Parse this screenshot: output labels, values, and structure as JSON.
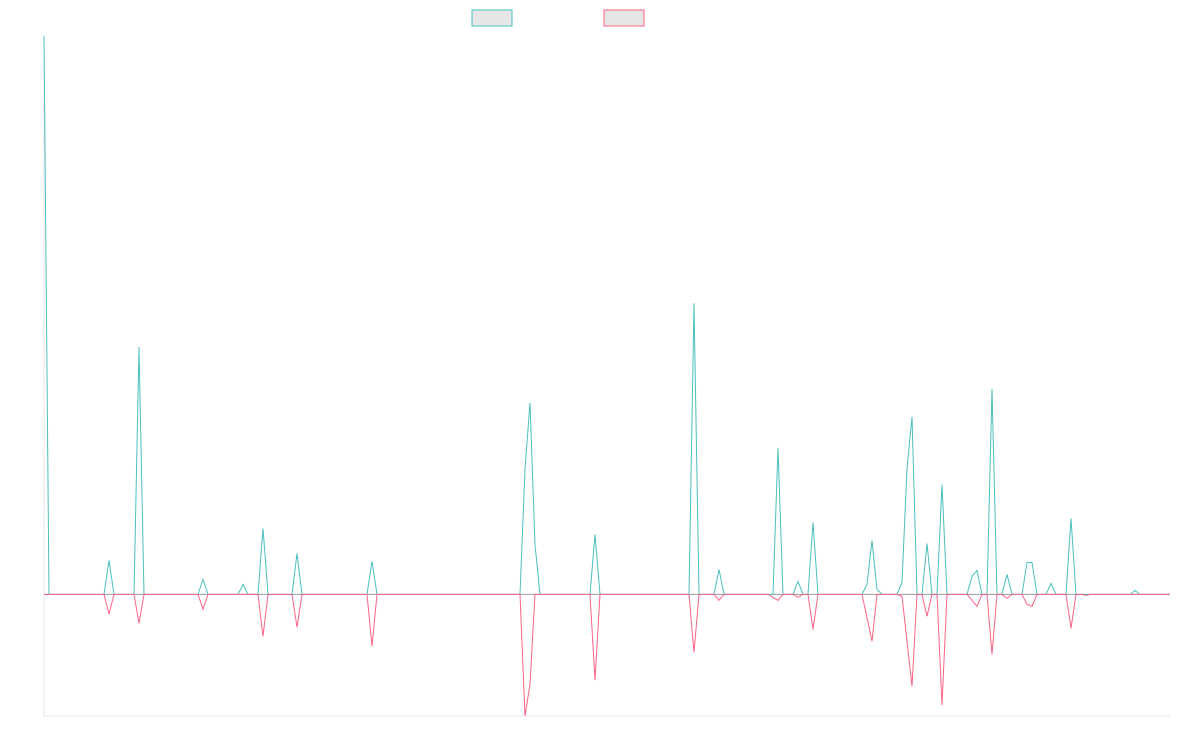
{
  "chart_data": {
    "type": "line",
    "xlim": [
      44,
      1170
    ],
    "ylim": [
      -122,
      560
    ],
    "series": [
      {
        "color": "#4bc0c0",
        "x": [
          44,
          49,
          104,
          109,
          114,
          134,
          139,
          144,
          198,
          203,
          208,
          238,
          243,
          248,
          258,
          263,
          268,
          292,
          297,
          302,
          367,
          372,
          377,
          520,
          525,
          530,
          535,
          540,
          590,
          595,
          600,
          689,
          694,
          699,
          714,
          719,
          724,
          773,
          778,
          783,
          793,
          798,
          803,
          808,
          813,
          818,
          862,
          867,
          872,
          877,
          882,
          897,
          902,
          907,
          912,
          917,
          922,
          927,
          932,
          937,
          942,
          947,
          967,
          972,
          977,
          982,
          987,
          992,
          997,
          1002,
          1007,
          1012,
          1022,
          1027,
          1032,
          1037,
          1046,
          1051,
          1056,
          1066,
          1071,
          1076,
          1130,
          1135,
          1140,
          1170
        ],
        "values": [
          560,
          0,
          0,
          34,
          0,
          0,
          248,
          0,
          0,
          15,
          0,
          0,
          10,
          0,
          0,
          66,
          0,
          0,
          41,
          0,
          0,
          33,
          0,
          0,
          126,
          192,
          50,
          0,
          0,
          60,
          0,
          0,
          292,
          0,
          0,
          25,
          0,
          0,
          147,
          0,
          0,
          13,
          0,
          0,
          72,
          0,
          0,
          10,
          54,
          5,
          0,
          0,
          12,
          126,
          178,
          0,
          0,
          51,
          0,
          0,
          110,
          0,
          0,
          18,
          24,
          0,
          0,
          206,
          0,
          0,
          20,
          0,
          0,
          32,
          32,
          0,
          0,
          11,
          0,
          0,
          76,
          0,
          0,
          4,
          0,
          0
        ]
      },
      {
        "color": "#ff6384",
        "x": [
          44,
          104,
          109,
          114,
          134,
          139,
          144,
          198,
          203,
          208,
          258,
          263,
          268,
          292,
          297,
          302,
          367,
          372,
          377,
          520,
          525,
          530,
          535,
          590,
          595,
          600,
          689,
          694,
          699,
          714,
          719,
          724,
          768,
          778,
          783,
          793,
          798,
          803,
          808,
          813,
          818,
          862,
          872,
          877,
          897,
          902,
          912,
          917,
          922,
          927,
          932,
          937,
          942,
          947,
          967,
          977,
          982,
          987,
          992,
          997,
          1002,
          1007,
          1012,
          1022,
          1027,
          1032,
          1037,
          1066,
          1071,
          1076,
          1081,
          1086,
          1091,
          1170
        ],
        "values": [
          0,
          0,
          -20,
          0,
          0,
          -29,
          0,
          0,
          -15,
          0,
          0,
          -42,
          0,
          0,
          -33,
          0,
          0,
          -52,
          0,
          0,
          -122,
          -90,
          0,
          0,
          -86,
          0,
          0,
          -58,
          0,
          0,
          -6,
          0,
          0,
          -6,
          0,
          0,
          -3,
          0,
          0,
          -35,
          0,
          0,
          -47,
          0,
          0,
          -2,
          -92,
          0,
          0,
          -22,
          0,
          0,
          -111,
          0,
          0,
          -12,
          0,
          0,
          -60,
          0,
          0,
          -4,
          0,
          0,
          -10,
          -12,
          0,
          0,
          -34,
          0,
          0,
          -1,
          0,
          0
        ]
      }
    ]
  }
}
